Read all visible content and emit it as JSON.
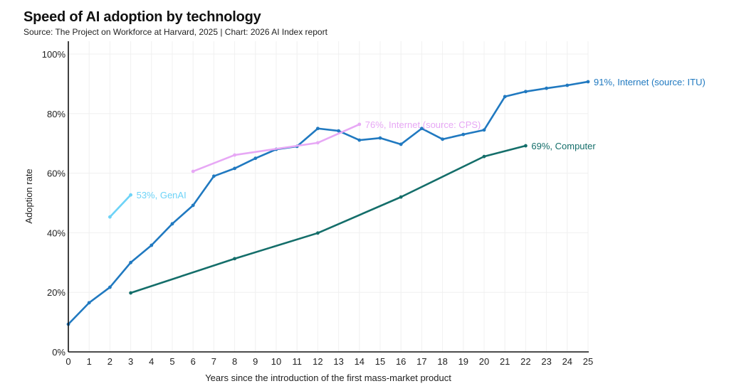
{
  "header": {
    "title": "Speed of AI adoption by technology",
    "subtitle": "Source: The Project on Workforce at Harvard, 2025 | Chart: 2026 AI Index report"
  },
  "chart_data": {
    "type": "line",
    "title": "Speed of AI adoption by technology",
    "subtitle": "Source: The Project on Workforce at Harvard, 2025 | Chart: 2026 AI Index report",
    "xlabel": "Years since the introduction of the first mass-market product",
    "ylabel": "Adoption rate",
    "xlim": [
      0,
      25
    ],
    "ylim": [
      0,
      100
    ],
    "xticks": [
      0,
      1,
      2,
      3,
      4,
      5,
      6,
      7,
      8,
      9,
      10,
      11,
      12,
      13,
      14,
      15,
      16,
      17,
      18,
      19,
      20,
      21,
      22,
      23,
      24,
      25
    ],
    "yticks": [
      0,
      20,
      40,
      60,
      80,
      100
    ],
    "ytick_labels": [
      "0%",
      "20%",
      "40%",
      "60%",
      "80%",
      "100%"
    ],
    "grid": true,
    "legend": "end-of-line labels",
    "series": [
      {
        "name": "Internet (source: ITU)",
        "label": "91%, Internet (source: ITU)",
        "color": "#2079c0",
        "x": [
          0,
          1,
          2,
          3,
          4,
          5,
          6,
          7,
          8,
          9,
          10,
          11,
          12,
          13,
          14,
          15,
          16,
          17,
          18,
          19,
          20,
          21,
          22,
          23,
          24,
          25
        ],
        "values": [
          9.3,
          16.5,
          21.7,
          30,
          35.8,
          43,
          49.2,
          59,
          61.6,
          65,
          68,
          69,
          75,
          74.2,
          71.1,
          71.8,
          69.7,
          75,
          71.4,
          73,
          74.5,
          85.7,
          87.4,
          88.5,
          89.5,
          90.7
        ]
      },
      {
        "name": "Internet (source: CPS)",
        "label": "76%, Internet (source: CPS)",
        "color": "#e7a8f5",
        "x": [
          6,
          8,
          12,
          14
        ],
        "values": [
          60.6,
          66.1,
          70.2,
          76.4
        ]
      },
      {
        "name": "GenAI",
        "label": "53%, GenAI",
        "color": "#6dd3f7",
        "x": [
          2,
          3
        ],
        "values": [
          45.3,
          52.7
        ]
      },
      {
        "name": "Computer",
        "label": "69%, Computer",
        "color": "#146e6a",
        "x": [
          3,
          8,
          12,
          16,
          20,
          22
        ],
        "values": [
          19.8,
          31.3,
          39.9,
          52,
          65.6,
          69.2
        ]
      }
    ]
  }
}
